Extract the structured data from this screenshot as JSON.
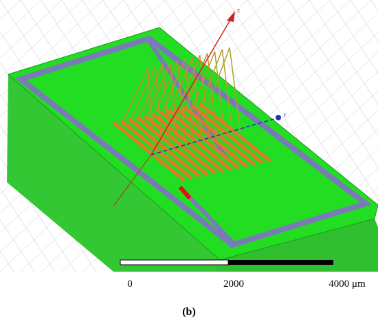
{
  "axes": {
    "z": "Z",
    "y": "Y"
  },
  "scale_bar": {
    "labels": [
      "0",
      "2000",
      "4000 μm"
    ]
  },
  "caption": "(b)"
}
